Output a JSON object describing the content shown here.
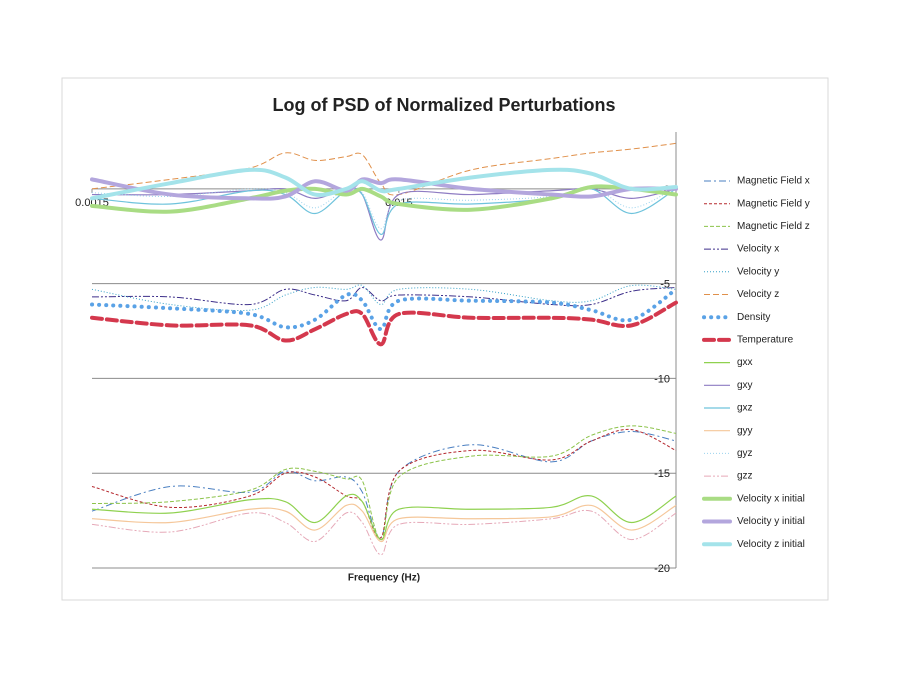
{
  "chart_data": {
    "type": "line",
    "title": "Log of PSD of Normalized Perturbations",
    "x_label": "Frequency (Hz)",
    "x": [
      0.0015,
      0.0027,
      0.0049,
      0.0064,
      0.008,
      0.0101,
      0.0114,
      0.0131,
      0.015,
      0.0258,
      0.0471,
      0.0636,
      0.086,
      0.12
    ],
    "xlim": [
      0.0015,
      0.12
    ],
    "xticks": [
      0.0015,
      0.015
    ],
    "xlog": true,
    "ylim": [
      -20,
      3
    ],
    "yticks": [
      0,
      -5,
      -10,
      -15,
      -20
    ],
    "grid": true,
    "legend": "right",
    "series": [
      {
        "name": "Magnetic Field x",
        "color": "#4a7fc1",
        "width": 1,
        "dash": "7 3 2 3",
        "values": [
          -17.0,
          -15.7,
          -16.0,
          -14.9,
          -15.4,
          -15.2,
          -16.0,
          -18.4,
          -14.9,
          -13.5,
          -14.4,
          -13.3,
          -12.8,
          -13.3
        ]
      },
      {
        "name": "Magnetic Field y",
        "color": "#b5282e",
        "width": 1,
        "dash": "3 2",
        "values": [
          -15.7,
          -16.8,
          -16.2,
          -15.0,
          -15.2,
          -16.2,
          -16.5,
          -18.4,
          -14.9,
          -13.8,
          -14.3,
          -13.3,
          -12.7,
          -13.8
        ]
      },
      {
        "name": "Magnetic Field z",
        "color": "#8cc34a",
        "width": 1,
        "dash": "4 2",
        "values": [
          -16.6,
          -16.5,
          -15.9,
          -14.8,
          -14.9,
          -15.3,
          -15.4,
          -18.5,
          -15.2,
          -14.1,
          -14.1,
          -13.0,
          -12.5,
          -12.9
        ]
      },
      {
        "name": "Velocity x",
        "color": "#3d2f8a",
        "width": 1,
        "dash": "7 2 2 2 2 2",
        "values": [
          -5.7,
          -5.7,
          -6.1,
          -5.3,
          -5.6,
          -5.9,
          -5.2,
          -5.9,
          -5.6,
          -5.7,
          -6.1,
          -6.1,
          -5.4,
          -5.2
        ]
      },
      {
        "name": "Velocity y",
        "color": "#35a0c7",
        "width": 1,
        "dash": "1 2",
        "values": [
          -5.3,
          -6.1,
          -6.4,
          -5.6,
          -5.2,
          -5.3,
          -5.1,
          -6.1,
          -5.3,
          -5.3,
          -5.9,
          -5.9,
          -5.1,
          -5.3
        ]
      },
      {
        "name": "Velocity z",
        "color": "#e0904a",
        "width": 1,
        "dash": "6 3",
        "values": [
          0,
          0.5,
          1.1,
          1.9,
          1.5,
          1.7,
          1.8,
          0.3,
          -0.3,
          1.0,
          1.6,
          1.9,
          2.1,
          2.4
        ]
      },
      {
        "name": "Density",
        "color": "#5aa2e6",
        "width": 4,
        "dash": "0.1 7",
        "values": [
          -6.1,
          -6.3,
          -6.6,
          -7.3,
          -6.9,
          -5.6,
          -5.9,
          -7.4,
          -5.9,
          -5.9,
          -6.0,
          -6.4,
          -6.9,
          -5.3
        ]
      },
      {
        "name": "Temperature",
        "color": "#d4384d",
        "width": 4,
        "dash": "10 5",
        "values": [
          -6.8,
          -7.2,
          -7.2,
          -8.0,
          -7.4,
          -6.6,
          -6.6,
          -8.2,
          -6.6,
          -6.8,
          -6.8,
          -6.9,
          -7.2,
          -6.0
        ]
      },
      {
        "name": "gxx",
        "color": "#8fd14f",
        "width": 1.2,
        "dash": "",
        "values": [
          -16.9,
          -17.1,
          -16.4,
          -16.5,
          -17.6,
          -16.2,
          -16.5,
          -18.5,
          -16.9,
          -16.9,
          -16.8,
          -16.2,
          -17.6,
          -16.2
        ]
      },
      {
        "name": "gxy",
        "color": "#8e7cc3",
        "width": 1.2,
        "dash": "",
        "values": [
          -0.3,
          -0.3,
          -0.1,
          0,
          -0.5,
          0,
          -0.3,
          -2.7,
          -0.3,
          -0.3,
          -0.1,
          0,
          -0.5,
          0
        ]
      },
      {
        "name": "gxz",
        "color": "#6fc3dc",
        "width": 1.2,
        "dash": "",
        "values": [
          -0.5,
          -0.8,
          -0.1,
          -0.3,
          -1.3,
          -0.1,
          -0.3,
          -2.4,
          -0.8,
          -0.8,
          -0.5,
          0,
          -1.3,
          0
        ]
      },
      {
        "name": "gyy",
        "color": "#f5c79a",
        "width": 1.2,
        "dash": "",
        "values": [
          -17.4,
          -17.6,
          -16.9,
          -17.0,
          -18.0,
          -16.7,
          -17.0,
          -18.6,
          -17.4,
          -17.4,
          -17.3,
          -16.7,
          -18.0,
          -16.7
        ]
      },
      {
        "name": "gyz",
        "color": "#9bd3ee",
        "width": 1,
        "dash": "1 2",
        "values": [
          -0.2,
          -0.4,
          0,
          -0.2,
          -1.0,
          0,
          -0.2,
          -2.1,
          -0.6,
          -0.6,
          -0.4,
          0.1,
          -1.0,
          0.1
        ]
      },
      {
        "name": "gzz",
        "color": "#e6a9b8",
        "width": 1,
        "dash": "7 2 2 2 2 2",
        "values": [
          -17.7,
          -18.1,
          -17.1,
          -17.6,
          -18.6,
          -17.1,
          -17.6,
          -19.3,
          -17.7,
          -17.7,
          -17.4,
          -17.0,
          -18.5,
          -17.1
        ]
      },
      {
        "name": "Velocity x initial",
        "color": "#a9dc84",
        "width": 4,
        "dash": "",
        "values": [
          -0.9,
          -1.2,
          -0.5,
          -0.1,
          0,
          -0.3,
          0,
          -0.4,
          -0.8,
          -1.1,
          -0.5,
          0.1,
          0,
          -0.3
        ]
      },
      {
        "name": "Velocity y initial",
        "color": "#b3a6dd",
        "width": 4,
        "dash": "",
        "values": [
          0.5,
          -0.3,
          -0.5,
          -0.4,
          0.4,
          -0.1,
          0.5,
          0.3,
          0.5,
          0,
          -0.3,
          -0.4,
          0,
          0
        ]
      },
      {
        "name": "Velocity z initial",
        "color": "#a4e3ea",
        "width": 4,
        "dash": "",
        "values": [
          -0.5,
          0.3,
          1.0,
          0.6,
          -0.3,
          0,
          0.4,
          -0.1,
          0,
          0.6,
          1.0,
          0.8,
          0,
          0.1
        ]
      }
    ]
  }
}
